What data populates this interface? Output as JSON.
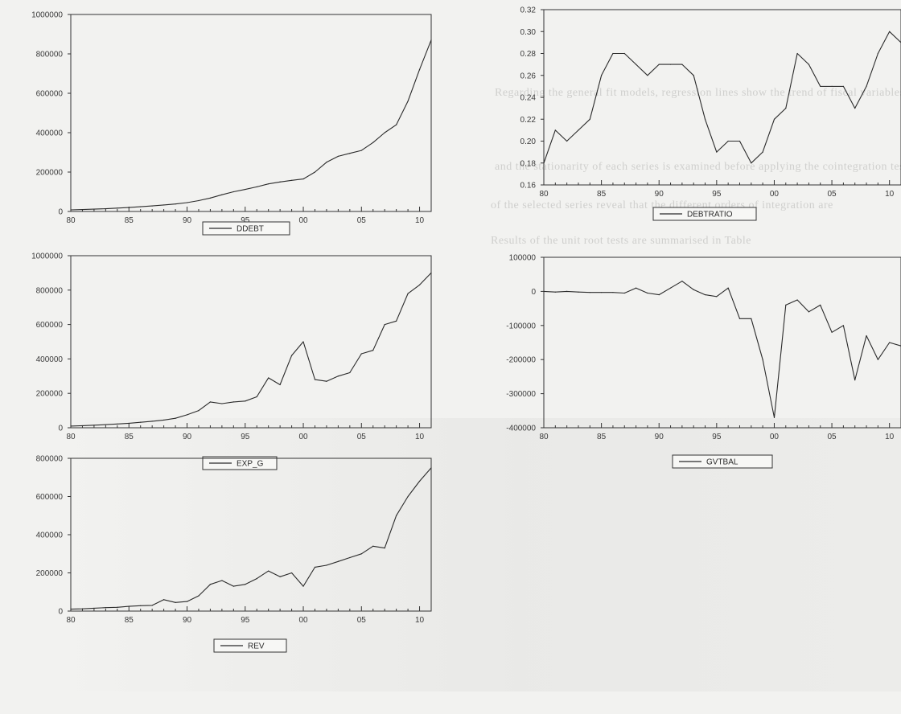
{
  "background_text": [
    "Regarding the general fit models, regression lines show the trend of fiscal variables",
    "and the stationarity of each series is examined before applying the cointegration tests",
    "of the selected series reveal that the different orders of integration are",
    "Results of the unit root tests are summarised in Table"
  ],
  "chart_data": [
    {
      "id": "ddebt",
      "type": "line",
      "legend": "DDEBT",
      "x": [
        1980,
        1981,
        1982,
        1983,
        1984,
        1985,
        1986,
        1987,
        1988,
        1989,
        1990,
        1991,
        1992,
        1993,
        1994,
        1995,
        1996,
        1997,
        1998,
        1999,
        2000,
        2001,
        2002,
        2003,
        2004,
        2005,
        2006,
        2007,
        2008,
        2009,
        2010,
        2011
      ],
      "values": [
        8000,
        10000,
        12000,
        14000,
        17000,
        20000,
        24000,
        28000,
        33000,
        38000,
        45000,
        55000,
        68000,
        85000,
        100000,
        112000,
        125000,
        140000,
        150000,
        158000,
        165000,
        200000,
        250000,
        280000,
        295000,
        310000,
        350000,
        400000,
        440000,
        560000,
        720000,
        870000
      ],
      "ylim": [
        0,
        1000000
      ],
      "yticks": [
        0,
        200000,
        400000,
        600000,
        800000,
        1000000
      ],
      "xticks": [
        "80",
        "85",
        "90",
        "95",
        "00",
        "05",
        "10"
      ]
    },
    {
      "id": "debtratio",
      "type": "line",
      "legend": "DEBTRATIO",
      "x": [
        1980,
        1981,
        1982,
        1983,
        1984,
        1985,
        1986,
        1987,
        1988,
        1989,
        1990,
        1991,
        1992,
        1993,
        1994,
        1995,
        1996,
        1997,
        1998,
        1999,
        2000,
        2001,
        2002,
        2003,
        2004,
        2005,
        2006,
        2007,
        2008,
        2009,
        2010,
        2011
      ],
      "values": [
        0.18,
        0.21,
        0.2,
        0.21,
        0.22,
        0.26,
        0.28,
        0.28,
        0.27,
        0.26,
        0.27,
        0.27,
        0.27,
        0.26,
        0.22,
        0.19,
        0.2,
        0.2,
        0.18,
        0.19,
        0.22,
        0.23,
        0.28,
        0.27,
        0.25,
        0.25,
        0.25,
        0.23,
        0.25,
        0.28,
        0.3,
        0.29
      ],
      "ylim": [
        0.16,
        0.32
      ],
      "yticks": [
        "0.16",
        "0.18",
        "0.20",
        "0.22",
        "0.24",
        "0.26",
        "0.28",
        "0.30",
        "0.32"
      ],
      "xticks": [
        "80",
        "85",
        "90",
        "95",
        "00",
        "05",
        "10"
      ]
    },
    {
      "id": "exp_g",
      "type": "line",
      "legend": "EXP_G",
      "x": [
        1980,
        1981,
        1982,
        1983,
        1984,
        1985,
        1986,
        1987,
        1988,
        1989,
        1990,
        1991,
        1992,
        1993,
        1994,
        1995,
        1996,
        1997,
        1998,
        1999,
        2000,
        2001,
        2002,
        2003,
        2004,
        2005,
        2006,
        2007,
        2008,
        2009,
        2010,
        2011
      ],
      "values": [
        10000,
        12000,
        15000,
        18000,
        22000,
        26000,
        32000,
        38000,
        45000,
        55000,
        75000,
        100000,
        150000,
        140000,
        150000,
        155000,
        180000,
        290000,
        250000,
        420000,
        500000,
        280000,
        270000,
        300000,
        320000,
        430000,
        450000,
        600000,
        620000,
        780000,
        830000,
        900000
      ],
      "ylim": [
        0,
        1000000
      ],
      "yticks": [
        0,
        200000,
        400000,
        600000,
        800000,
        1000000
      ],
      "xticks": [
        "80",
        "85",
        "90",
        "95",
        "00",
        "05",
        "10"
      ]
    },
    {
      "id": "gvtbal",
      "type": "line",
      "legend": "GVTBAL",
      "x": [
        1980,
        1981,
        1982,
        1983,
        1984,
        1985,
        1986,
        1987,
        1988,
        1989,
        1990,
        1991,
        1992,
        1993,
        1994,
        1995,
        1996,
        1997,
        1998,
        1999,
        2000,
        2001,
        2002,
        2003,
        2004,
        2005,
        2006,
        2007,
        2008,
        2009,
        2010,
        2011
      ],
      "values": [
        0,
        -2000,
        0,
        -2000,
        -3000,
        -3000,
        -3000,
        -5000,
        10000,
        -5000,
        -10000,
        10000,
        30000,
        5000,
        -10000,
        -15000,
        10000,
        -80000,
        -80000,
        -200000,
        -370000,
        -40000,
        -25000,
        -60000,
        -40000,
        -120000,
        -100000,
        -260000,
        -130000,
        -200000,
        -150000,
        -160000
      ],
      "ylim": [
        -400000,
        100000
      ],
      "yticks": [
        -400000,
        -300000,
        -200000,
        -100000,
        0,
        100000
      ],
      "xticks": [
        "80",
        "85",
        "90",
        "95",
        "00",
        "05",
        "10"
      ]
    },
    {
      "id": "rev",
      "type": "line",
      "legend": "REV",
      "x": [
        1980,
        1981,
        1982,
        1983,
        1984,
        1985,
        1986,
        1987,
        1988,
        1989,
        1990,
        1991,
        1992,
        1993,
        1994,
        1995,
        1996,
        1997,
        1998,
        1999,
        2000,
        2001,
        2002,
        2003,
        2004,
        2005,
        2006,
        2007,
        2008,
        2009,
        2010,
        2011
      ],
      "values": [
        10000,
        12000,
        15000,
        18000,
        20000,
        25000,
        28000,
        30000,
        60000,
        45000,
        50000,
        80000,
        140000,
        160000,
        130000,
        140000,
        170000,
        210000,
        180000,
        200000,
        130000,
        230000,
        240000,
        260000,
        280000,
        300000,
        340000,
        330000,
        500000,
        600000,
        680000,
        750000
      ],
      "ylim": [
        0,
        800000
      ],
      "yticks": [
        0,
        200000,
        400000,
        600000,
        800000
      ],
      "xticks": [
        "80",
        "85",
        "90",
        "95",
        "00",
        "05",
        "10"
      ]
    }
  ]
}
